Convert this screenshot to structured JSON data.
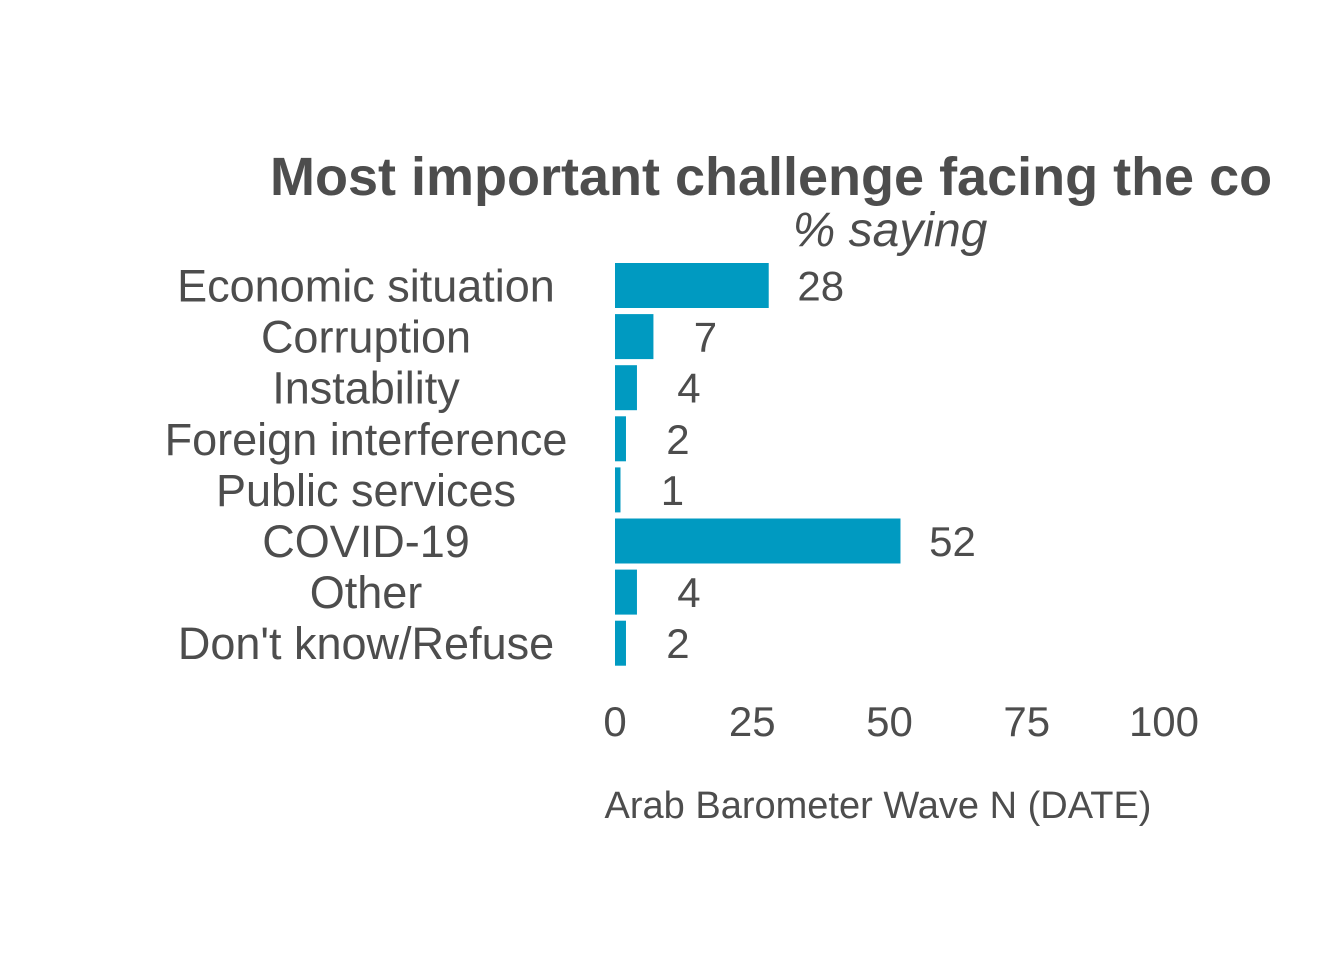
{
  "chart_data": {
    "type": "bar",
    "orientation": "horizontal",
    "title": "Most important challenge facing the co",
    "subtitle": "% saying",
    "categories": [
      "Economic situation",
      "Corruption",
      "Instability",
      "Foreign interference",
      "Public services",
      "COVID-19",
      "Other",
      "Don't know/Refuse"
    ],
    "values": [
      28,
      7,
      4,
      2,
      1,
      52,
      4,
      2
    ],
    "data_labels": [
      "28",
      "7",
      "4",
      "2",
      "1",
      "52",
      "4",
      "2"
    ],
    "xlim": [
      0,
      100
    ],
    "xticks": [
      0,
      25,
      50,
      75,
      100
    ],
    "xtick_labels": [
      "0",
      "25",
      "50",
      "75",
      "100"
    ],
    "caption": "Arab Barometer Wave N (DATE)",
    "bar_color": "#009ac1",
    "text_color": "#4d4d4d",
    "grid": false,
    "legend": "none"
  }
}
